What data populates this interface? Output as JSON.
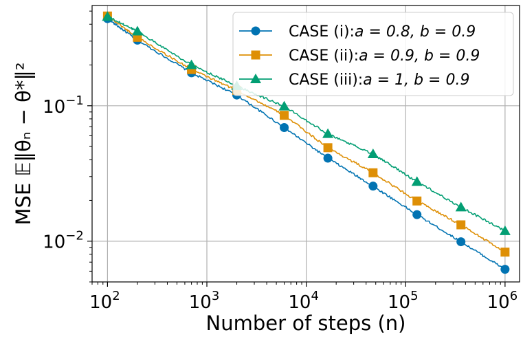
{
  "chart_data": {
    "type": "line",
    "title": "",
    "xscale": "log",
    "yscale": "log",
    "xlabel": "Number of steps (n)",
    "ylabel": "MSE 𝔼‖θₙ − θ*‖²",
    "xlim": [
      70,
      1400000
    ],
    "ylim": [
      0.005,
      0.55
    ],
    "grid": true,
    "legend_position": "upper right",
    "x_ticks": [
      {
        "value": 100,
        "base": "10",
        "exp": "2"
      },
      {
        "value": 1000,
        "base": "10",
        "exp": "3"
      },
      {
        "value": 10000,
        "base": "10",
        "exp": "4"
      },
      {
        "value": 100000,
        "base": "10",
        "exp": "5"
      },
      {
        "value": 1000000,
        "base": "10",
        "exp": "6"
      }
    ],
    "y_ticks": [
      {
        "value": 0.01,
        "base": "10",
        "exp": "−2"
      },
      {
        "value": 0.1,
        "base": "10",
        "exp": "−1"
      }
    ],
    "y_minor_ticks": [
      0.005,
      0.006,
      0.007,
      0.008,
      0.009,
      0.02,
      0.03,
      0.04,
      0.05,
      0.06,
      0.07,
      0.08,
      0.09,
      0.2,
      0.3,
      0.4,
      0.5
    ],
    "marker_x": [
      100,
      200,
      700,
      2000,
      6000,
      16500,
      47000,
      130000,
      360000,
      1000000
    ],
    "series": [
      {
        "name": "CASE (i)",
        "legend_prefix": "CASE (i):",
        "legend_params": "a = 0.8, b = 0.9",
        "color": "#0173b2",
        "marker": "circle",
        "x": [
          100,
          200,
          700,
          2000,
          6000,
          16500,
          47000,
          130000,
          360000,
          1000000
        ],
        "y": [
          0.44,
          0.305,
          0.175,
          0.12,
          0.069,
          0.041,
          0.0255,
          0.0157,
          0.0099,
          0.0062
        ]
      },
      {
        "name": "CASE (ii)",
        "legend_prefix": "CASE (ii):",
        "legend_params": "a = 0.9, b = 0.9",
        "color": "#de8f05",
        "marker": "square",
        "x": [
          100,
          200,
          700,
          2000,
          6000,
          16500,
          47000,
          130000,
          360000,
          1000000
        ],
        "y": [
          0.46,
          0.32,
          0.185,
          0.13,
          0.085,
          0.049,
          0.032,
          0.0198,
          0.0132,
          0.0083
        ]
      },
      {
        "name": "CASE (iii)",
        "legend_prefix": "CASE (iii):",
        "legend_params": "a = 1, b = 0.9",
        "color": "#029e73",
        "marker": "triangle",
        "x": [
          100,
          200,
          700,
          2000,
          6000,
          16500,
          47000,
          130000,
          360000,
          1000000
        ],
        "y": [
          0.455,
          0.355,
          0.2,
          0.14,
          0.099,
          0.062,
          0.044,
          0.0275,
          0.0178,
          0.0119
        ]
      }
    ]
  }
}
